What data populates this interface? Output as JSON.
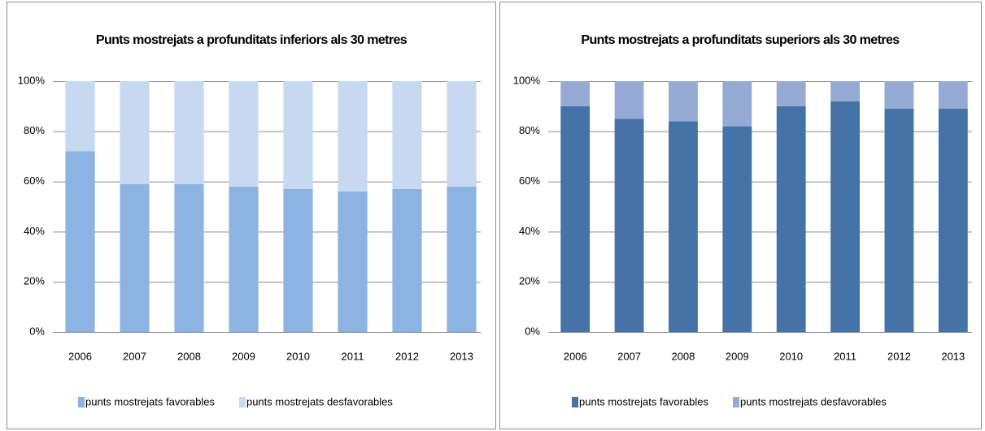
{
  "chart_data": [
    {
      "type": "bar",
      "stacked": true,
      "title": "Punts mostrejats a profunditats inferiors als 30 metres",
      "categories": [
        "2006",
        "2007",
        "2008",
        "2009",
        "2010",
        "2011",
        "2012",
        "2013"
      ],
      "series": [
        {
          "name": "punts mostrejats  favorables",
          "color": "#8db3e2",
          "values": [
            72,
            59,
            59,
            58,
            57,
            56,
            57,
            58
          ]
        },
        {
          "name": "punts mostrejats  desfavorables",
          "color": "#c6d9f1",
          "values": [
            28,
            41,
            41,
            42,
            43,
            44,
            43,
            42
          ]
        }
      ],
      "ylim": [
        0,
        100
      ],
      "yticks": [
        {
          "value": 0,
          "label": "0%"
        },
        {
          "value": 20,
          "label": "20%"
        },
        {
          "value": 40,
          "label": "40%"
        },
        {
          "value": 60,
          "label": "60%"
        },
        {
          "value": 80,
          "label": "80%"
        },
        {
          "value": 100,
          "label": "100%"
        }
      ],
      "grid": true,
      "legend": "bottom"
    },
    {
      "type": "bar",
      "stacked": true,
      "title": "Punts mostrejats a profunditats superiors als 30 metres",
      "categories": [
        "2006",
        "2007",
        "2008",
        "2009",
        "2010",
        "2011",
        "2012",
        "2013"
      ],
      "series": [
        {
          "name": "punts mostrejats  favorables",
          "color": "#4572a7",
          "values": [
            90,
            85,
            84,
            82,
            90,
            92,
            89,
            89
          ]
        },
        {
          "name": "punts mostrejats  desfavorables",
          "color": "#95abd3",
          "values": [
            10,
            15,
            16,
            18,
            10,
            8,
            11,
            11
          ]
        }
      ],
      "ylim": [
        0,
        100
      ],
      "yticks": [
        {
          "value": 0,
          "label": "0%"
        },
        {
          "value": 20,
          "label": "20%"
        },
        {
          "value": 40,
          "label": "40%"
        },
        {
          "value": 60,
          "label": "60%"
        },
        {
          "value": 80,
          "label": "80%"
        },
        {
          "value": 100,
          "label": "100%"
        }
      ],
      "grid": true,
      "legend": "bottom"
    }
  ]
}
